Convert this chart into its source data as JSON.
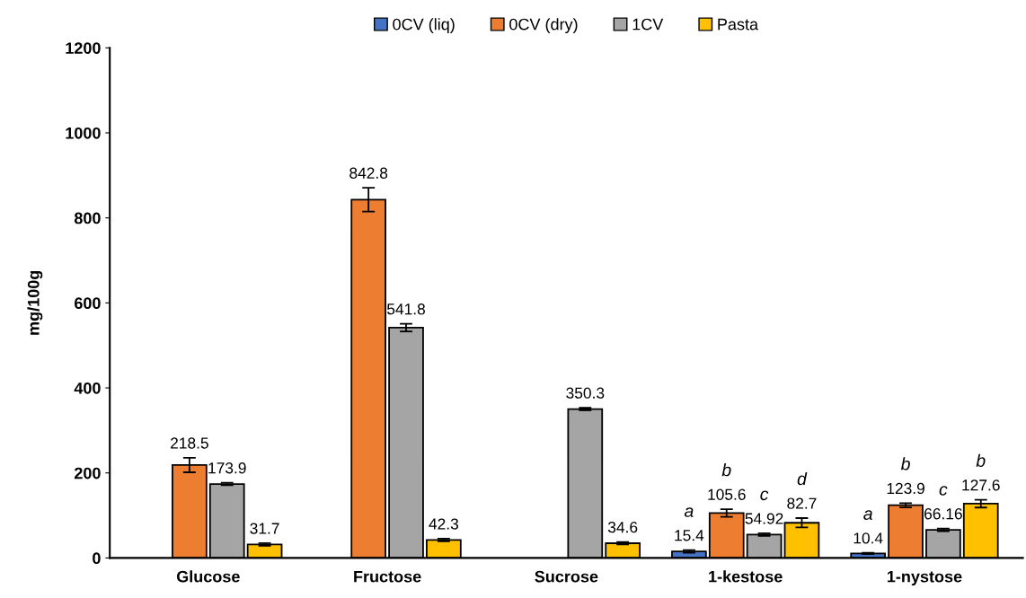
{
  "chart_data": {
    "type": "bar",
    "ylabel": "mg/100g",
    "categories": [
      "Glucose",
      "Fructose",
      "Sucrose",
      "1-kestose",
      "1-nystose"
    ],
    "series": [
      {
        "name": "0CV (liq)",
        "color": "#4472c4",
        "values": [
          null,
          null,
          null,
          15.4,
          10.4
        ],
        "errors": [
          null,
          null,
          null,
          3,
          1.5
        ]
      },
      {
        "name": "0CV (dry)",
        "color": "#ed7d31",
        "values": [
          218.5,
          842.8,
          null,
          105.6,
          123.9
        ],
        "errors": [
          17,
          28,
          null,
          9,
          5
        ]
      },
      {
        "name": "1CV",
        "color": "#a5a5a5",
        "values": [
          173.9,
          541.8,
          350.3,
          54.92,
          66.16
        ],
        "errors": [
          3,
          9,
          3,
          3,
          3
        ]
      },
      {
        "name": "Pasta",
        "color": "#ffc000",
        "values": [
          31.7,
          42.3,
          34.6,
          82.7,
          127.6
        ],
        "errors": [
          3,
          3,
          3,
          11,
          9
        ]
      }
    ],
    "data_labels": true,
    "annotations": [
      "a",
      "b",
      "c",
      "d",
      "a",
      "b",
      "c",
      "b"
    ],
    "ylim": [
      0,
      1200
    ],
    "yticks": [
      0,
      200,
      400,
      600,
      800,
      1000,
      1200
    ],
    "grid": false,
    "legend": "top"
  }
}
